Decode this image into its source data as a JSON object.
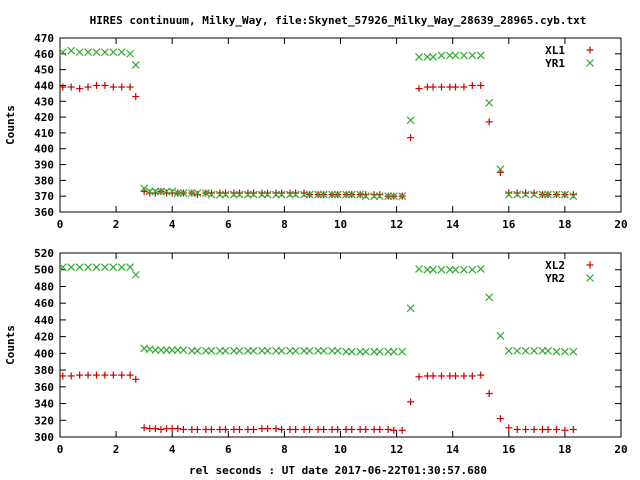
{
  "title": "HIRES continuum, Milky_Way, file:Skynet_57926_Milky_Way_28639_28965.cyb.txt",
  "colors": {
    "red": "#cc0000",
    "green": "#33aa33"
  },
  "chart_data": [
    {
      "type": "scatter",
      "ylabel": "Counts",
      "xlabel": "",
      "xlim": [
        0,
        20
      ],
      "ylim": [
        360,
        470
      ],
      "xticks": [
        0,
        2,
        4,
        6,
        8,
        10,
        12,
        14,
        16,
        18,
        20
      ],
      "yticks": [
        360,
        370,
        380,
        390,
        400,
        410,
        420,
        430,
        440,
        450,
        460,
        470
      ],
      "grid": false,
      "legend_position": "top-right",
      "series": [
        {
          "name": "XL1",
          "marker": "plus",
          "color": "#cc0000",
          "x": [
            0.1,
            0.4,
            0.7,
            1.0,
            1.3,
            1.6,
            1.9,
            2.2,
            2.5,
            2.7,
            3.0,
            3.2,
            3.4,
            3.6,
            3.8,
            4.0,
            4.2,
            4.4,
            4.7,
            4.9,
            5.2,
            5.4,
            5.7,
            5.9,
            6.2,
            6.4,
            6.7,
            6.9,
            7.2,
            7.4,
            7.7,
            7.9,
            8.2,
            8.4,
            8.7,
            8.9,
            9.2,
            9.4,
            9.7,
            9.9,
            10.2,
            10.4,
            10.7,
            10.9,
            11.2,
            11.4,
            11.7,
            11.9,
            12.2,
            12.5,
            12.8,
            13.1,
            13.3,
            13.6,
            13.9,
            14.1,
            14.4,
            14.7,
            15.0,
            15.3,
            15.7,
            16.0,
            16.3,
            16.6,
            16.9,
            17.2,
            17.4,
            17.7,
            18.0,
            18.3
          ],
          "y": [
            439,
            439,
            438,
            439,
            440,
            440,
            439,
            439,
            439,
            433,
            373,
            372,
            372,
            373,
            372,
            372,
            372,
            372,
            372,
            371,
            372,
            372,
            372,
            372,
            372,
            372,
            372,
            372,
            372,
            372,
            372,
            372,
            372,
            372,
            372,
            371,
            371,
            371,
            371,
            371,
            371,
            371,
            371,
            371,
            371,
            371,
            370,
            370,
            370,
            407,
            438,
            439,
            439,
            439,
            439,
            439,
            439,
            440,
            440,
            417,
            385,
            372,
            372,
            372,
            372,
            371,
            371,
            371,
            371,
            371
          ]
        },
        {
          "name": "YR1",
          "marker": "cross",
          "color": "#33aa33",
          "x": [
            0.1,
            0.4,
            0.7,
            1.0,
            1.3,
            1.6,
            1.9,
            2.2,
            2.5,
            2.7,
            3.0,
            3.2,
            3.4,
            3.6,
            3.8,
            4.0,
            4.2,
            4.4,
            4.7,
            4.9,
            5.2,
            5.4,
            5.7,
            5.9,
            6.2,
            6.4,
            6.7,
            6.9,
            7.2,
            7.4,
            7.7,
            7.9,
            8.2,
            8.4,
            8.7,
            8.9,
            9.2,
            9.4,
            9.7,
            9.9,
            10.2,
            10.4,
            10.7,
            10.9,
            11.2,
            11.4,
            11.7,
            11.9,
            12.2,
            12.5,
            12.8,
            13.1,
            13.3,
            13.6,
            13.9,
            14.1,
            14.4,
            14.7,
            15.0,
            15.3,
            15.7,
            16.0,
            16.3,
            16.6,
            16.9,
            17.2,
            17.4,
            17.7,
            18.0,
            18.3
          ],
          "y": [
            461,
            462,
            461,
            461,
            461,
            461,
            461,
            461,
            460,
            453,
            375,
            373,
            373,
            373,
            373,
            373,
            372,
            372,
            372,
            372,
            372,
            371,
            371,
            371,
            371,
            371,
            371,
            371,
            371,
            371,
            371,
            371,
            371,
            371,
            371,
            371,
            371,
            371,
            371,
            371,
            371,
            371,
            371,
            370,
            370,
            370,
            370,
            370,
            370,
            418,
            458,
            458,
            458,
            459,
            459,
            459,
            459,
            459,
            459,
            429,
            387,
            371,
            371,
            371,
            371,
            371,
            371,
            371,
            371,
            370
          ]
        }
      ]
    },
    {
      "type": "scatter",
      "ylabel": "Counts",
      "xlabel": "rel seconds : UT date 2017-06-22T01:30:57.680",
      "xlim": [
        0,
        20
      ],
      "ylim": [
        300,
        520
      ],
      "xticks": [
        0,
        2,
        4,
        6,
        8,
        10,
        12,
        14,
        16,
        18,
        20
      ],
      "yticks": [
        300,
        320,
        340,
        360,
        380,
        400,
        420,
        440,
        460,
        480,
        500,
        520
      ],
      "grid": false,
      "legend_position": "top-right",
      "series": [
        {
          "name": "XL2",
          "marker": "plus",
          "color": "#cc0000",
          "x": [
            0.1,
            0.4,
            0.7,
            1.0,
            1.3,
            1.6,
            1.9,
            2.2,
            2.5,
            2.7,
            3.0,
            3.2,
            3.4,
            3.6,
            3.8,
            4.0,
            4.2,
            4.4,
            4.7,
            4.9,
            5.2,
            5.4,
            5.7,
            5.9,
            6.2,
            6.4,
            6.7,
            6.9,
            7.2,
            7.4,
            7.7,
            7.9,
            8.2,
            8.4,
            8.7,
            8.9,
            9.2,
            9.4,
            9.7,
            9.9,
            10.2,
            10.4,
            10.7,
            10.9,
            11.2,
            11.4,
            11.7,
            11.9,
            12.2,
            12.5,
            12.8,
            13.1,
            13.3,
            13.6,
            13.9,
            14.1,
            14.4,
            14.7,
            15.0,
            15.3,
            15.7,
            16.0,
            16.3,
            16.6,
            16.9,
            17.2,
            17.4,
            17.7,
            18.0,
            18.3
          ],
          "y": [
            373,
            373,
            374,
            374,
            374,
            374,
            374,
            374,
            374,
            369,
            311,
            310,
            310,
            309,
            310,
            310,
            310,
            309,
            309,
            309,
            309,
            309,
            309,
            309,
            309,
            309,
            309,
            309,
            310,
            310,
            310,
            309,
            309,
            309,
            309,
            309,
            309,
            309,
            309,
            309,
            309,
            309,
            309,
            309,
            309,
            309,
            309,
            308,
            308,
            342,
            372,
            373,
            373,
            373,
            373,
            373,
            373,
            373,
            374,
            352,
            322,
            311,
            309,
            309,
            309,
            309,
            309,
            309,
            308,
            309
          ]
        },
        {
          "name": "YR2",
          "marker": "cross",
          "color": "#33aa33",
          "x": [
            0.1,
            0.4,
            0.7,
            1.0,
            1.3,
            1.6,
            1.9,
            2.2,
            2.5,
            2.7,
            3.0,
            3.2,
            3.4,
            3.6,
            3.8,
            4.0,
            4.2,
            4.4,
            4.7,
            4.9,
            5.2,
            5.4,
            5.7,
            5.9,
            6.2,
            6.4,
            6.7,
            6.9,
            7.2,
            7.4,
            7.7,
            7.9,
            8.2,
            8.4,
            8.7,
            8.9,
            9.2,
            9.4,
            9.7,
            9.9,
            10.2,
            10.4,
            10.7,
            10.9,
            11.2,
            11.4,
            11.7,
            11.9,
            12.2,
            12.5,
            12.8,
            13.1,
            13.3,
            13.6,
            13.9,
            14.1,
            14.4,
            14.7,
            15.0,
            15.3,
            15.7,
            16.0,
            16.3,
            16.6,
            16.9,
            17.2,
            17.4,
            17.7,
            18.0,
            18.3
          ],
          "y": [
            503,
            503,
            503,
            503,
            503,
            503,
            503,
            503,
            503,
            494,
            406,
            405,
            404,
            404,
            404,
            404,
            404,
            404,
            403,
            403,
            403,
            403,
            403,
            403,
            403,
            403,
            403,
            403,
            403,
            403,
            403,
            403,
            403,
            403,
            403,
            403,
            403,
            403,
            403,
            403,
            402,
            402,
            402,
            402,
            402,
            402,
            402,
            402,
            402,
            454,
            501,
            500,
            500,
            500,
            500,
            500,
            500,
            500,
            501,
            467,
            421,
            403,
            403,
            403,
            403,
            403,
            403,
            402,
            402,
            402
          ]
        }
      ]
    }
  ]
}
